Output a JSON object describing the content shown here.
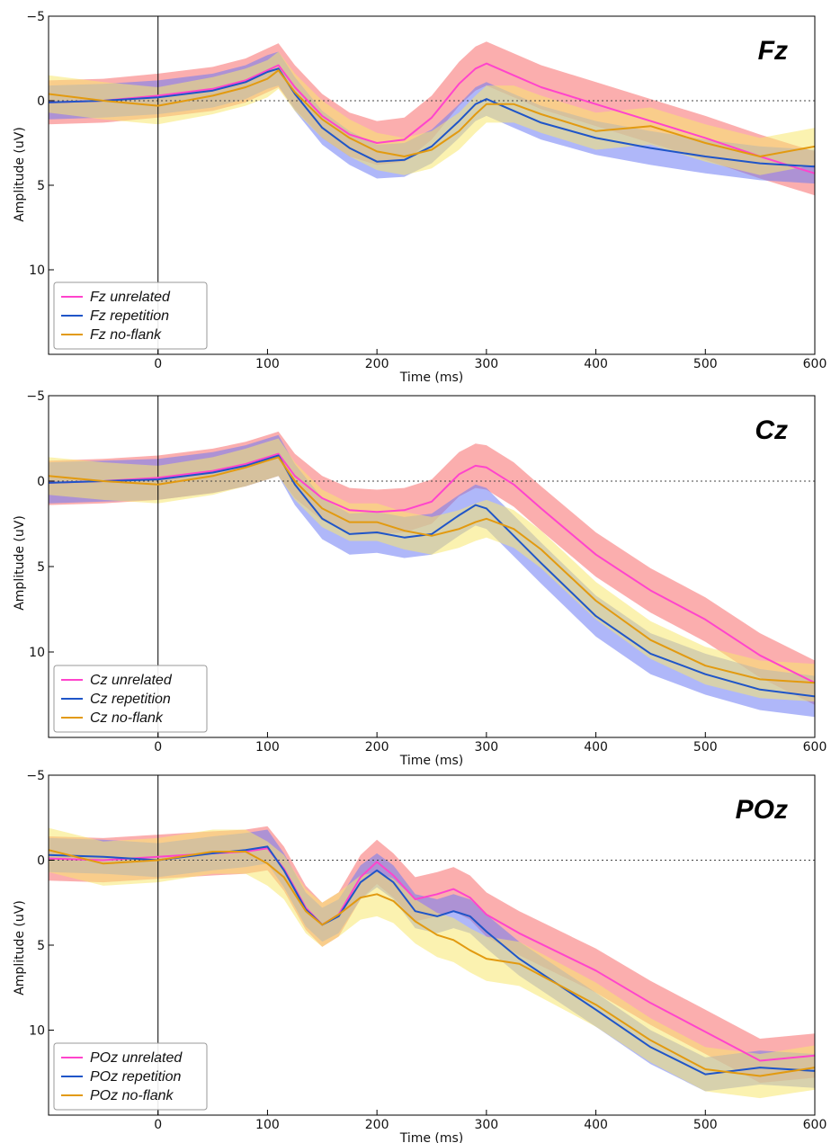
{
  "colors": {
    "unrelated_line": "#ff44cc",
    "unrelated_band": "#f87878",
    "repetition_line": "#1f55c8",
    "repetition_band": "#6e7cf4",
    "noflank_line": "#e29a10",
    "noflank_band": "#f8e870",
    "axes": "#000000",
    "zero_line": "#444444"
  },
  "chart_data": [
    {
      "type": "line",
      "title": "Fz",
      "xlabel": "Time (ms)",
      "ylabel": "Amplitude (uV)",
      "xlim": [
        -100,
        600
      ],
      "ylim": [
        -5,
        15
      ],
      "y_inverted": true,
      "xticks": [
        0,
        100,
        200,
        300,
        400,
        500,
        600
      ],
      "xtick_labels": [
        "0",
        "100",
        "200",
        "300",
        "400",
        "500",
        "600"
      ],
      "yticks": [
        -5,
        0,
        5,
        10
      ],
      "ytick_labels": [
        "−5",
        "0",
        "5",
        "10"
      ],
      "grid": false,
      "legend": "lower-left",
      "x": [
        -100,
        -50,
        0,
        50,
        80,
        100,
        110,
        125,
        150,
        175,
        200,
        225,
        250,
        275,
        290,
        300,
        325,
        350,
        400,
        450,
        500,
        550,
        600
      ],
      "series": [
        {
          "name": "Fz unrelated",
          "band_half_width": 1.3,
          "values": [
            0.1,
            0,
            -0.3,
            -0.7,
            -1.2,
            -1.8,
            -2.1,
            -0.8,
            0.9,
            2.0,
            2.5,
            2.3,
            1.0,
            -1.0,
            -1.9,
            -2.2,
            -1.5,
            -0.8,
            0.2,
            1.2,
            2.2,
            3.3,
            4.3
          ]
        },
        {
          "name": "Fz repetition",
          "band_half_width": 1.0,
          "values": [
            0.1,
            0,
            -0.2,
            -0.6,
            -1.1,
            -1.7,
            -1.9,
            -0.4,
            1.6,
            2.8,
            3.6,
            3.5,
            2.7,
            1.2,
            0.2,
            -0.1,
            0.6,
            1.3,
            2.2,
            2.8,
            3.3,
            3.7,
            3.9
          ]
        },
        {
          "name": "Fz no-flank",
          "band_half_width": 1.1,
          "values": [
            -0.4,
            0,
            0.3,
            -0.3,
            -0.8,
            -1.3,
            -1.8,
            -0.5,
            1.1,
            2.2,
            3.0,
            3.3,
            2.9,
            1.8,
            0.8,
            0.2,
            0.2,
            0.8,
            1.8,
            1.5,
            2.5,
            3.3,
            2.7
          ]
        }
      ]
    },
    {
      "type": "line",
      "title": "Cz",
      "xlabel": "Time (ms)",
      "ylabel": "Amplitude (uV)",
      "xlim": [
        -100,
        600
      ],
      "ylim": [
        -5,
        15
      ],
      "y_inverted": true,
      "xticks": [
        0,
        100,
        200,
        300,
        400,
        500,
        600
      ],
      "xtick_labels": [
        "0",
        "100",
        "200",
        "300",
        "400",
        "500",
        "600"
      ],
      "yticks": [
        -5,
        0,
        5,
        10
      ],
      "ytick_labels": [
        "−5",
        "0",
        "5",
        "10"
      ],
      "grid": false,
      "legend": "lower-left",
      "x": [
        -100,
        -50,
        0,
        50,
        80,
        100,
        110,
        125,
        150,
        175,
        200,
        225,
        250,
        275,
        290,
        300,
        325,
        350,
        400,
        450,
        500,
        550,
        600
      ],
      "series": [
        {
          "name": "Cz unrelated",
          "band_half_width": 1.3,
          "values": [
            0.1,
            0,
            -0.2,
            -0.6,
            -1.0,
            -1.4,
            -1.6,
            -0.3,
            1.0,
            1.7,
            1.8,
            1.7,
            1.2,
            -0.4,
            -0.9,
            -0.8,
            0.2,
            1.6,
            4.3,
            6.4,
            8.1,
            10.2,
            11.8
          ]
        },
        {
          "name": "Cz repetition",
          "band_half_width": 1.2,
          "values": [
            0.1,
            0,
            -0.1,
            -0.5,
            -0.9,
            -1.3,
            -1.5,
            0.2,
            2.2,
            3.1,
            3.0,
            3.3,
            3.1,
            2.0,
            1.4,
            1.6,
            3.2,
            4.8,
            7.9,
            10.1,
            11.3,
            12.2,
            12.6
          ]
        },
        {
          "name": "Cz no-flank",
          "band_half_width": 1.1,
          "values": [
            -0.3,
            0,
            0.2,
            -0.3,
            -0.8,
            -1.2,
            -1.4,
            0.0,
            1.6,
            2.4,
            2.4,
            2.9,
            3.2,
            2.8,
            2.4,
            2.2,
            2.8,
            4.0,
            7.0,
            9.3,
            10.8,
            11.6,
            11.8
          ]
        }
      ]
    },
    {
      "type": "line",
      "title": "POz",
      "xlabel": "Time (ms)",
      "ylabel": "Amplitude (uV)",
      "xlim": [
        -100,
        600
      ],
      "ylim": [
        -5,
        15
      ],
      "y_inverted": true,
      "xticks": [
        0,
        100,
        200,
        300,
        400,
        500,
        600
      ],
      "xtick_labels": [
        "0",
        "100",
        "200",
        "300",
        "400",
        "500",
        "600"
      ],
      "yticks": [
        -5,
        0,
        5,
        10
      ],
      "ytick_labels": [
        "−5",
        "0",
        "5",
        "10"
      ],
      "grid": false,
      "legend": "lower-left",
      "x": [
        -100,
        -50,
        0,
        50,
        80,
        100,
        115,
        135,
        150,
        165,
        185,
        200,
        215,
        235,
        255,
        270,
        285,
        300,
        330,
        400,
        450,
        500,
        550,
        600
      ],
      "series": [
        {
          "name": "POz unrelated",
          "band_half_width": 1.3,
          "values": [
            -0.1,
            0,
            -0.2,
            -0.4,
            -0.5,
            -0.7,
            0.5,
            2.8,
            3.8,
            3.2,
            1.0,
            0.1,
            0.9,
            2.3,
            2.0,
            1.7,
            2.2,
            3.2,
            4.3,
            6.5,
            8.4,
            10.1,
            11.8,
            11.5
          ]
        },
        {
          "name": "POz repetition",
          "band_half_width": 1.0,
          "values": [
            -0.3,
            -0.2,
            0,
            -0.4,
            -0.6,
            -0.8,
            0.6,
            2.9,
            3.8,
            3.3,
            1.3,
            0.6,
            1.3,
            3.0,
            3.3,
            3.0,
            3.3,
            4.2,
            5.8,
            8.8,
            11.0,
            12.6,
            12.2,
            12.4
          ]
        },
        {
          "name": "POz no-flank",
          "band_half_width": 1.3,
          "values": [
            -0.6,
            0.2,
            0,
            -0.5,
            -0.5,
            0.2,
            1.0,
            3.0,
            3.8,
            3.2,
            2.2,
            2.0,
            2.4,
            3.6,
            4.4,
            4.7,
            5.3,
            5.8,
            6.1,
            8.5,
            10.6,
            12.3,
            12.7,
            12.2
          ]
        }
      ]
    }
  ]
}
